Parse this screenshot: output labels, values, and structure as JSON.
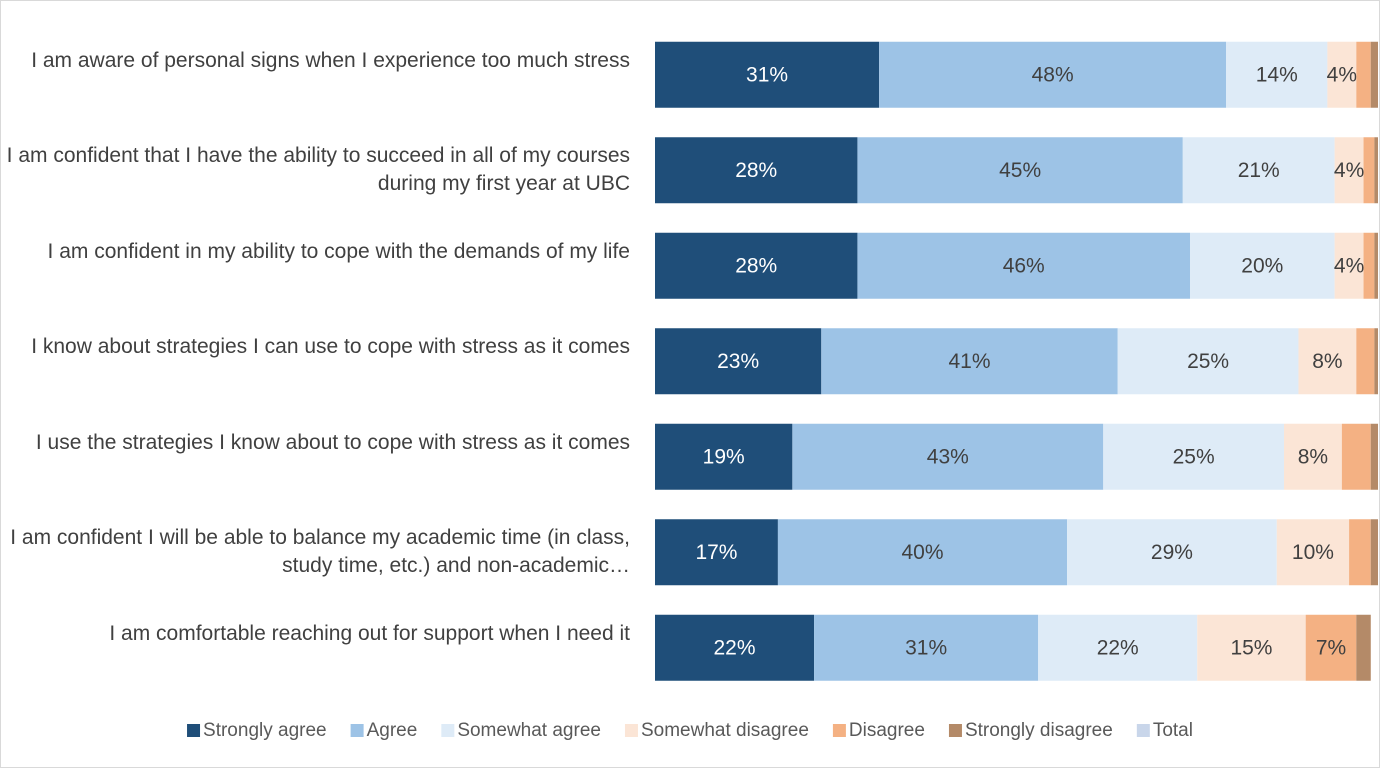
{
  "chart_data": {
    "type": "stacked_bar_horizontal",
    "categories": [
      "I am aware of personal signs when I experience too much stress",
      "I am confident that I have the ability to succeed in all of my courses during my first year at UBC",
      "I am confident in my ability to cope with the demands of my life",
      "I know about strategies I can use to cope with stress as it comes",
      "I use the strategies I know about to cope with stress as it comes",
      "I am confident I will be able to balance my academic time (in class, study time, etc.) and non-academic…",
      "I am comfortable reaching out for support when I need it"
    ],
    "xlim": [
      0,
      100
    ],
    "series": [
      {
        "name": "Strongly agree",
        "color": "#1f4e79",
        "values": [
          31,
          28,
          28,
          23,
          19,
          17,
          22
        ],
        "value_labels": [
          "31%",
          "28%",
          "28%",
          "23%",
          "19%",
          "17%",
          "22%"
        ]
      },
      {
        "name": "Agree",
        "color": "#9dc3e6",
        "values": [
          48,
          45,
          46,
          41,
          43,
          40,
          31
        ],
        "value_labels": [
          "48%",
          "45%",
          "46%",
          "41%",
          "43%",
          "40%",
          "31%"
        ]
      },
      {
        "name": "Somewhat agree",
        "color": "#deebf7",
        "values": [
          14,
          21,
          20,
          25,
          25,
          29,
          22
        ],
        "value_labels": [
          "14%",
          "21%",
          "20%",
          "25%",
          "25%",
          "29%",
          "22%"
        ]
      },
      {
        "name": "Somewhat disagree",
        "color": "#fbe5d6",
        "values": [
          4,
          4,
          4,
          8,
          8,
          10,
          15
        ],
        "value_labels": [
          "4%",
          "4%",
          "4%",
          "8%",
          "8%",
          "10%",
          "15%"
        ]
      },
      {
        "name": "Disagree",
        "color": "#f4b183",
        "values": [
          2,
          1.5,
          1.5,
          2.5,
          4,
          3,
          7
        ],
        "value_labels": [
          null,
          null,
          null,
          null,
          null,
          null,
          "7%"
        ]
      },
      {
        "name": "Strongly disagree",
        "color": "#b48a68",
        "values": [
          1,
          0.5,
          0.5,
          0.5,
          1,
          1,
          2
        ],
        "value_labels": [
          null,
          null,
          null,
          null,
          null,
          null,
          null
        ]
      },
      {
        "name": "Total",
        "color": "#c9d6ea",
        "values": [
          null,
          null,
          null,
          null,
          null,
          null,
          null
        ],
        "value_labels": [
          null,
          null,
          null,
          null,
          null,
          null,
          null
        ]
      }
    ]
  }
}
